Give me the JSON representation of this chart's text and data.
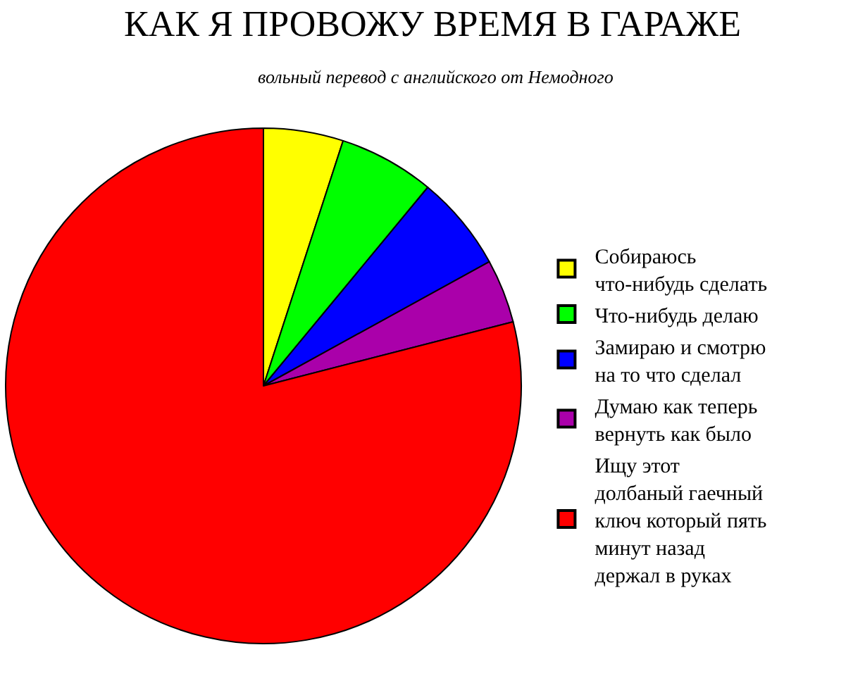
{
  "chart_data": {
    "type": "pie",
    "title": "КАК Я ПРОВОЖУ ВРЕМЯ В ГАРАЖЕ",
    "subtitle": "вольный перевод с английского от Немодного",
    "categories": [
      "Собираюсь\nчто-нибудь сделать",
      "Что-нибудь делаю",
      "Замираю и смотрю\nна то что сделал",
      "Думаю как теперь\nвернуть как было",
      "Ищу этот\nдолбаный гаечный\nключ который пять\nминут назад\nдержал в руках"
    ],
    "values": [
      5,
      6,
      6,
      4,
      79
    ],
    "colors": [
      "#ffff00",
      "#00ff00",
      "#0000ff",
      "#aa00aa",
      "#ff0000"
    ],
    "legend": "right"
  }
}
